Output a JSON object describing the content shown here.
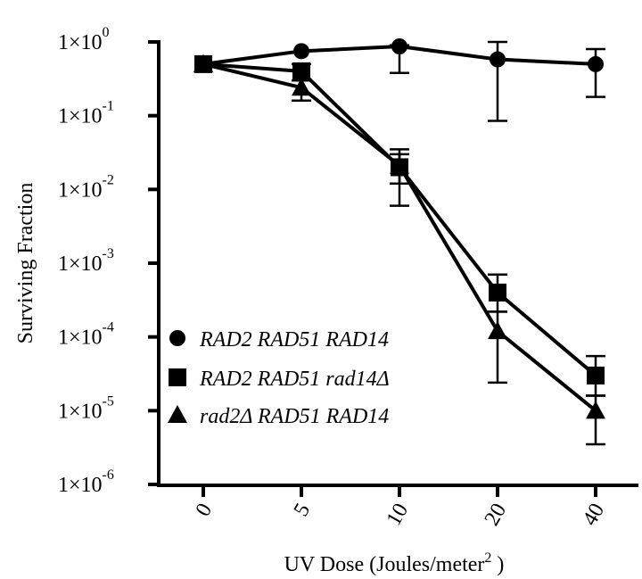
{
  "chart_data": {
    "type": "line",
    "xscale": "categorical",
    "yscale": "log",
    "categories": [
      "0",
      "5",
      "10",
      "20",
      "40"
    ],
    "ylim": [
      1e-06,
      1
    ],
    "ytick_labels": [
      {
        "value": 1,
        "base": "1×10",
        "exp": "0"
      },
      {
        "value": 0.1,
        "base": "1×10",
        "exp": "-1"
      },
      {
        "value": 0.01,
        "base": "1×10",
        "exp": "-2"
      },
      {
        "value": 0.001,
        "base": "1×10",
        "exp": "-3"
      },
      {
        "value": 0.0001,
        "base": "1×10",
        "exp": "-4"
      },
      {
        "value": 1e-05,
        "base": "1×10",
        "exp": "-5"
      },
      {
        "value": 1e-06,
        "base": "1×10",
        "exp": "-6"
      }
    ],
    "xlabel": "UV Dose (Joules/meter",
    "xlabel_sup": "2",
    "xlabel_end": " )",
    "ylabel": "Surviving Fraction",
    "legend_position": "bottom-left",
    "grid": false,
    "series": [
      {
        "name": "RAD2 RAD51 RAD14",
        "marker": "circle",
        "values": [
          0.5,
          0.75,
          0.87,
          0.58,
          0.5
        ],
        "err_upper": [
          null,
          null,
          0.9,
          1.0,
          0.8
        ],
        "err_lower": [
          null,
          null,
          0.38,
          0.085,
          0.18
        ]
      },
      {
        "name": "RAD2 RAD51 rad14Δ",
        "marker": "square",
        "values": [
          0.5,
          0.4,
          0.02,
          0.0004,
          3e-05
        ],
        "err_upper": [
          null,
          0.5,
          0.035,
          0.0007,
          5.5e-05
        ],
        "err_lower": [
          null,
          0.3,
          0.006,
          0.00022,
          1.6e-05
        ]
      },
      {
        "name": "rad2Δ RAD51 RAD14",
        "marker": "triangle",
        "values": [
          0.5,
          0.24,
          0.021,
          0.00012,
          1e-05
        ],
        "err_upper": [
          null,
          0.3,
          0.03,
          0.00022,
          1.6e-05
        ],
        "err_lower": [
          null,
          0.16,
          0.012,
          2.4e-05,
          3.5e-06
        ]
      }
    ]
  }
}
